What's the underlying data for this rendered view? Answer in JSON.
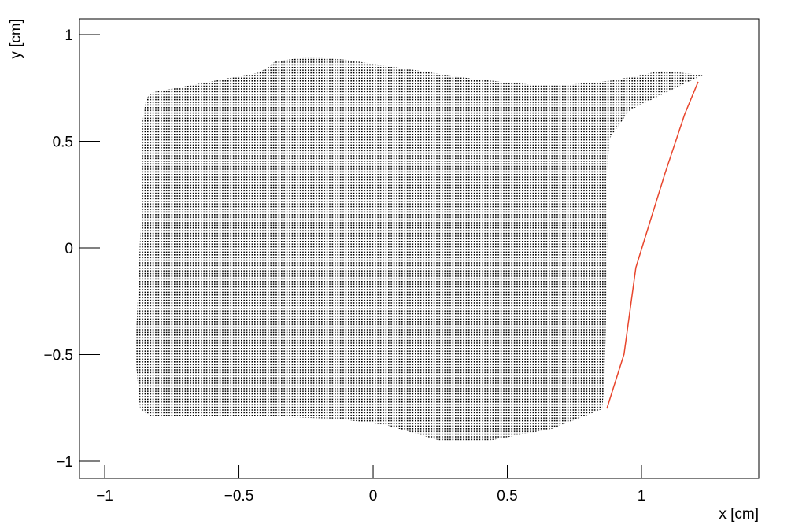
{
  "chart_data": {
    "type": "scatter",
    "x_label": "x [cm]",
    "y_label": "y [cm]",
    "xlim": [
      -1.094,
      1.437
    ],
    "ylim": [
      -1.081,
      1.074
    ],
    "xticks": [
      {
        "value": -1,
        "label": "−1"
      },
      {
        "value": -0.5,
        "label": "−0.5"
      },
      0,
      0.5,
      1
    ],
    "yticks": [
      {
        "value": -1,
        "label": "−1"
      },
      {
        "value": -0.5,
        "label": "−0.5"
      },
      0,
      0.5,
      1
    ],
    "series": [
      {
        "style": "dot-area",
        "color": "#000000",
        "x": [
          -0.848,
          -0.833,
          -0.628,
          -0.422,
          -0.364,
          -0.232,
          -0.1,
          0.135,
          0.37,
          0.604,
          0.721,
          0.897,
          1.073,
          1.229,
          0.956,
          0.883,
          0.868,
          0.874,
          0.868,
          0.862,
          0.853,
          0.663,
          0.428,
          0.252,
          0.047,
          -0.129,
          -0.51,
          -0.833,
          -0.868,
          -0.886,
          -0.877,
          -0.862,
          -0.862
        ],
        "y": [
          0.683,
          0.727,
          0.775,
          0.823,
          0.875,
          0.897,
          0.882,
          0.838,
          0.793,
          0.764,
          0.764,
          0.786,
          0.83,
          0.812,
          0.646,
          0.517,
          0.314,
          0.055,
          -0.314,
          -0.646,
          -0.756,
          -0.849,
          -0.904,
          -0.904,
          -0.83,
          -0.801,
          -0.786,
          -0.786,
          -0.756,
          -0.498,
          -0.24,
          0.24,
          0.572
        ]
      },
      {
        "style": "line",
        "color": "#e8452c",
        "x": [
          0.871,
          0.935,
          0.979,
          1.015,
          1.088,
          1.161,
          1.211
        ],
        "y": [
          -0.753,
          -0.498,
          -0.092,
          0.055,
          0.351,
          0.627,
          0.779
        ]
      }
    ]
  }
}
